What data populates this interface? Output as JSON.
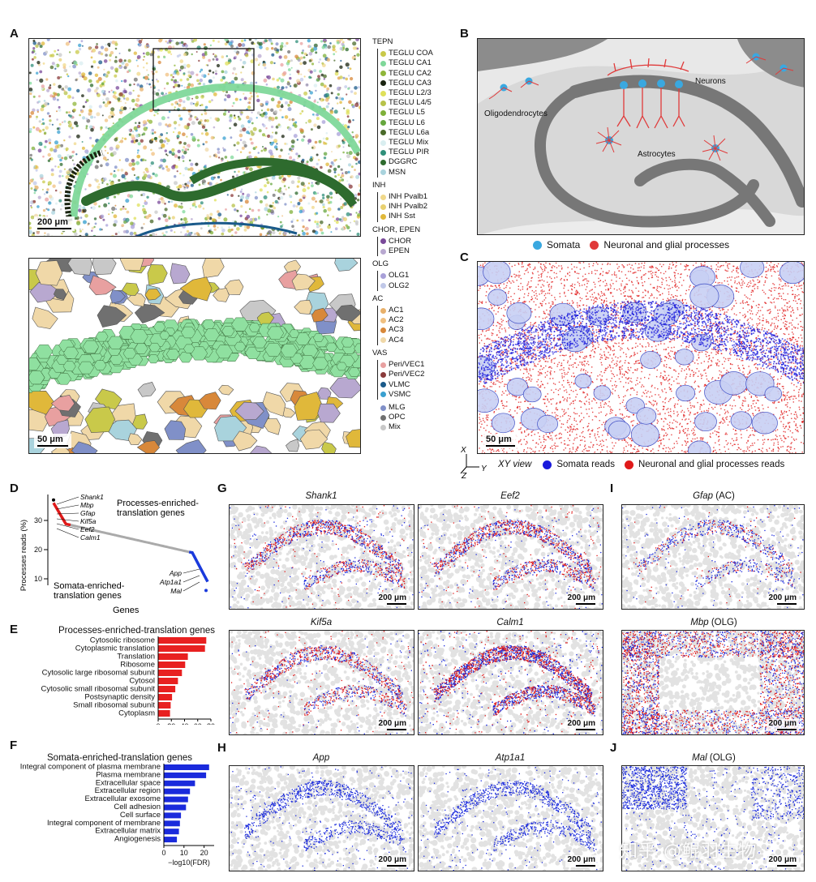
{
  "panels": {
    "A": "A",
    "B": "B",
    "C": "C",
    "D": "D",
    "E": "E",
    "F": "F",
    "G": "G",
    "H": "H",
    "I": "I",
    "J": "J"
  },
  "panel_a": {
    "scale_top": "200 μm",
    "scale_bottom": "50 μm"
  },
  "legend": [
    {
      "group": "TEPN",
      "items": [
        {
          "label": "TEGLU COA",
          "color": "#c9c94a"
        },
        {
          "label": "TEGLU CA1",
          "color": "#7fd89a"
        },
        {
          "label": "TEGLU CA2",
          "color": "#8fb63a"
        },
        {
          "label": "TEGLU CA3",
          "color": "#1a2410"
        },
        {
          "label": "TEGLU L2/3",
          "color": "#dfe05a"
        },
        {
          "label": "TEGLU L4/5",
          "color": "#b7c24a"
        },
        {
          "label": "TEGLU L5",
          "color": "#7fb03a"
        },
        {
          "label": "TEGLU L6",
          "color": "#66a63e"
        },
        {
          "label": "TEGLU L6a",
          "color": "#4a6a2a"
        },
        {
          "label": "TEGLU Mix",
          "color": "#d9eef0"
        },
        {
          "label": "TEGLU PIR",
          "color": "#2f8f7a"
        },
        {
          "label": "DGGRC",
          "color": "#2e6b2e"
        },
        {
          "label": "MSN",
          "color": "#a9d3dd"
        }
      ]
    },
    {
      "group": "INH",
      "items": [
        {
          "label": "INH Pvalb1",
          "color": "#f0d88a"
        },
        {
          "label": "INH Pvalb2",
          "color": "#e8d070"
        },
        {
          "label": "INH Sst",
          "color": "#e0b83a"
        }
      ]
    },
    {
      "group": "CHOR, EPEN",
      "items": [
        {
          "label": "CHOR",
          "color": "#7a4a9a"
        },
        {
          "label": "EPEN",
          "color": "#b8a8d0"
        }
      ]
    },
    {
      "group": "OLG",
      "items": [
        {
          "label": "OLG1",
          "color": "#a8a0d8"
        },
        {
          "label": "OLG2",
          "color": "#c0c8e8"
        }
      ]
    },
    {
      "group": "AC",
      "items": [
        {
          "label": "AC1",
          "color": "#e8b06a"
        },
        {
          "label": "AC2",
          "color": "#f0c080"
        },
        {
          "label": "AC3",
          "color": "#d8883a"
        },
        {
          "label": "AC4",
          "color": "#f0d8a8"
        }
      ]
    },
    {
      "group": "VAS",
      "items": [
        {
          "label": "Peri/VEC1",
          "color": "#e8a0a0"
        },
        {
          "label": "Peri/VEC2",
          "color": "#8a3a3a"
        },
        {
          "label": "VLMC",
          "color": "#1a5a8a"
        },
        {
          "label": "VSMC",
          "color": "#3aa0d0"
        }
      ]
    },
    {
      "group": "",
      "items": [
        {
          "label": "MLG",
          "color": "#8090c8"
        },
        {
          "label": "OPC",
          "color": "#707070"
        },
        {
          "label": "Mix",
          "color": "#c8c8c8"
        }
      ]
    }
  ],
  "panel_b": {
    "oligodendrocytes": "Oligodendrocytes",
    "neurons": "Neurons",
    "astrocytes": "Astrocytes",
    "legend_somata": "Somata",
    "legend_processes": "Neuronal and glial processes",
    "color_somata": "#3aa8e0",
    "color_processes": "#e03a3a"
  },
  "panel_c": {
    "scale": "50 μm",
    "axis_x": "X",
    "axis_y": "Y",
    "axis_z": "Z",
    "view_label": "XY view",
    "legend_somata": "Somata reads",
    "legend_processes": "Neuronal and glial processes reads",
    "color_somata": "#1a1adc",
    "color_processes": "#e01a1a"
  },
  "panel_d": {
    "ylabel": "Processes reads (%)",
    "xlabel": "Genes",
    "yticks": [
      "10",
      "20",
      "30"
    ],
    "processes_label_1": "Processes-enriched-",
    "processes_label_2": "translation genes",
    "somata_label_1": "Somata-enriched-",
    "somata_label_2": "translation genes",
    "top_genes": [
      "Shank1",
      "Mbp",
      "Gfap",
      "Kif5a",
      "Eef2",
      "Calm1"
    ],
    "bottom_genes": [
      "App",
      "Atp1a1",
      "Mal"
    ]
  },
  "chart_data": [
    {
      "type": "bar",
      "title": "Processes-enriched-translation genes",
      "categories": [
        "Cytosolic ribosome",
        "Cytoplasmic translation",
        "Translation",
        "Ribosome",
        "Cytosolic large ribosomal subunit",
        "Cytosol",
        "Cytosolic small ribosomal subunit",
        "Postsynaptic density",
        "Small ribosomal subunit",
        "Cytoplasm"
      ],
      "values": [
        73,
        71,
        45,
        41,
        36,
        30,
        26,
        21,
        19,
        18
      ],
      "xlabel": "−log10(FDR)",
      "xticks": [
        0,
        20,
        40,
        60,
        80
      ],
      "xlim": [
        0,
        80
      ],
      "color": "#e82020"
    },
    {
      "type": "bar",
      "title": "Somata-enriched-translation genes",
      "categories": [
        "Integral component of plasma membrane",
        "Plasma membrane",
        "Extracellular space",
        "Extracellular region",
        "Extracellular exosome",
        "Cell adhesion",
        "Cell surface",
        "Integral component of membrane",
        "Extracellular matrix",
        "Angiogenesis"
      ],
      "values": [
        22.5,
        21,
        15.5,
        13,
        12,
        11,
        8.5,
        8,
        7.5,
        6.5
      ],
      "xlabel": "−log10(FDR)",
      "xticks": [
        0,
        10,
        20
      ],
      "xlim": [
        0,
        25
      ],
      "color": "#1a2adc"
    }
  ],
  "panel_g": {
    "genes": [
      "Shank1",
      "Eef2",
      "Kif5a",
      "Calm1"
    ],
    "scale": "200 μm"
  },
  "panel_h": {
    "genes": [
      "App",
      "Atp1a1"
    ],
    "scale": "200 μm"
  },
  "panel_i": {
    "genes": [
      "Gfap",
      "Mbp"
    ],
    "suffix": [
      "(AC)",
      "(OLG)"
    ],
    "scale": "200 μm"
  },
  "panel_j": {
    "gene": "Mal",
    "suffix": "(OLG)",
    "scale": "200 μm"
  },
  "watermark": "知乎 @鲲羽生物"
}
